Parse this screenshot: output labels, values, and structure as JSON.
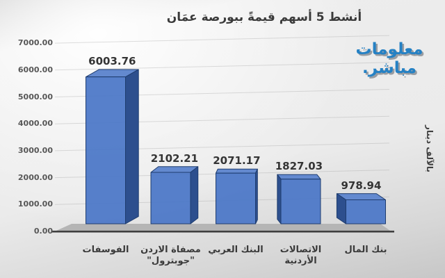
{
  "title": "أنشط 5 أسهم قيمةً ببورصة عمَان",
  "logo": {
    "line1": "معلومات",
    "line2": "مباشر."
  },
  "right_axis_title": "بالآلف دينار",
  "chart_data": {
    "type": "bar",
    "title": "أنشط 5 أسهم قيمةً ببورصة عمَان",
    "ylabel": "بالآلف دينار",
    "xlabel": "",
    "categories": [
      "الفوسفات",
      "مصفاة الاردن \"جوبترول\"",
      "البنك العربي",
      "الاتصالات الأردنية",
      "بنك المال"
    ],
    "category_lines": [
      [
        "الفوسفات"
      ],
      [
        "مصفاة الاردن",
        "\"جوبترول\""
      ],
      [
        "البنك العربي"
      ],
      [
        "الاتصالات",
        "الأردنية"
      ],
      [
        "بنك المال"
      ]
    ],
    "values": [
      6003.76,
      2102.21,
      2071.17,
      1827.03,
      978.94
    ],
    "value_labels": [
      "6003.76",
      "2102.21",
      "2071.17",
      "1827.03",
      "978.94"
    ],
    "y_ticks": [
      "7000.00",
      "6000.00",
      "5000.00",
      "4000.00",
      "3000.00",
      "2000.00",
      "1000.00",
      "0.00"
    ],
    "ylim": [
      0,
      7000
    ],
    "grid": "on",
    "legend": "none",
    "style": "3d-column",
    "colors": {
      "bar_front": "#4a76c7",
      "bar_top": "#6389cf",
      "bar_side": "#2d4f8e",
      "bar_edge": "#1e3c6e",
      "floor": "#b5b5b5",
      "axis_line": "#3f3f3f",
      "gridline": "#9b9b9b",
      "tick_text": "#575757",
      "label_text": "#343434",
      "logo_blue": "#2581c4"
    }
  }
}
